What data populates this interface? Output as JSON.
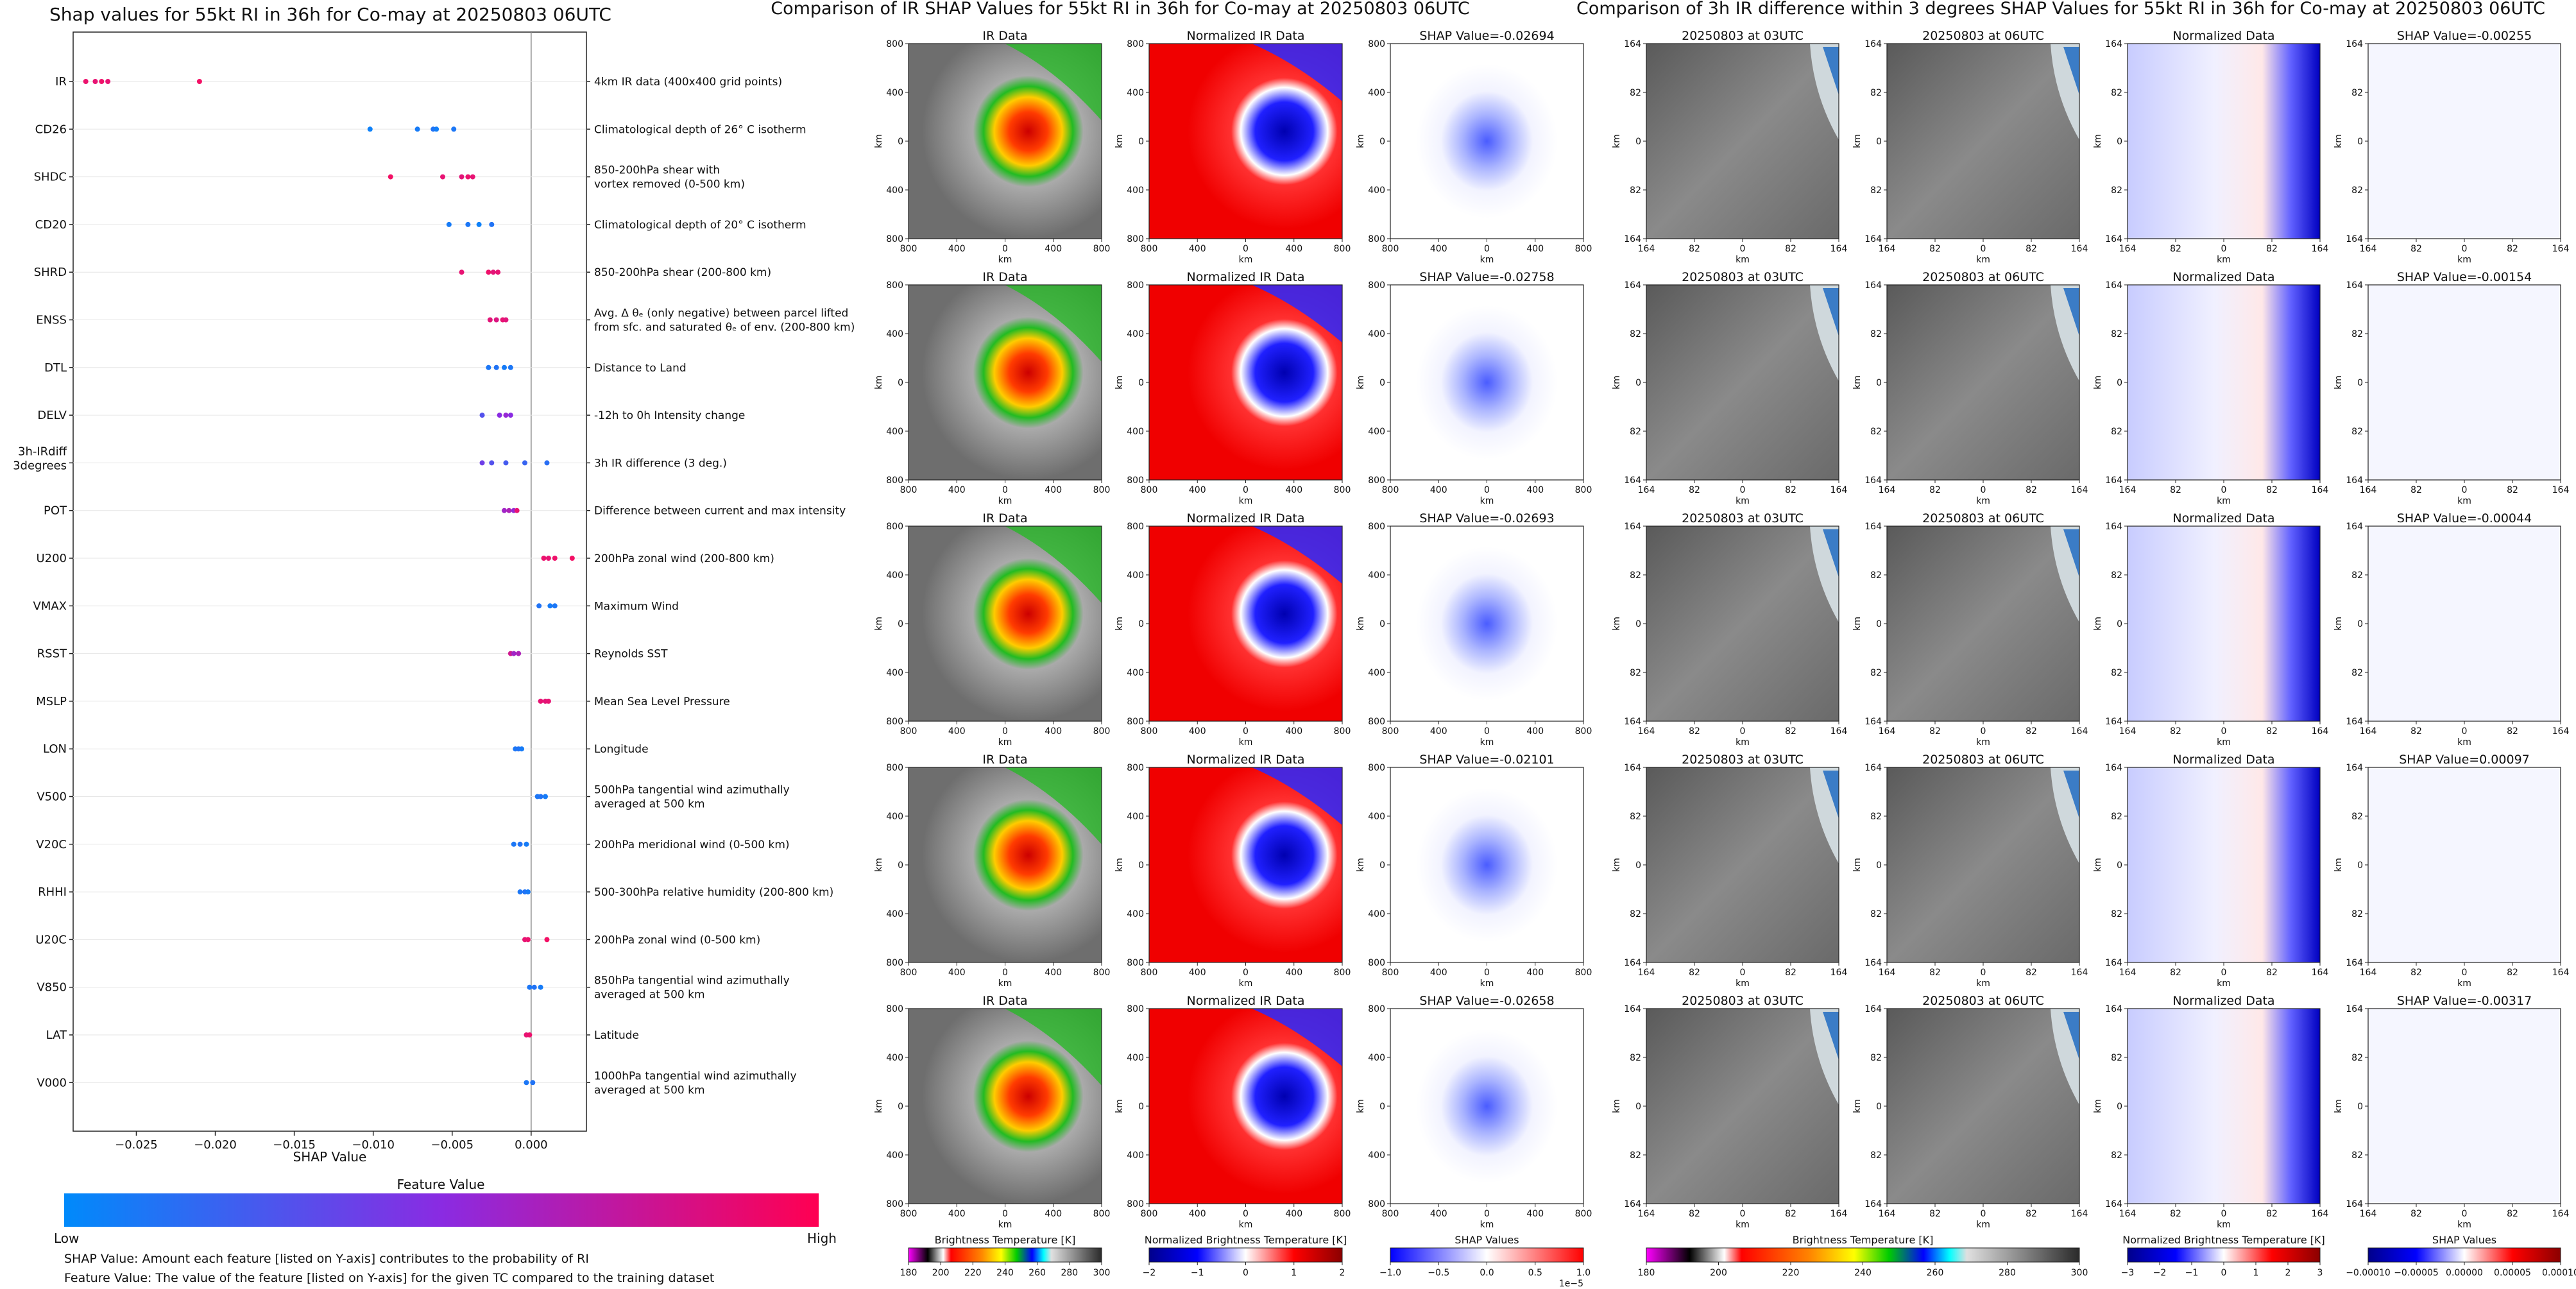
{
  "summary": {
    "title": "Shap values for 55kt RI in 36h for Co-may at 20250803 06UTC",
    "xlabel": "SHAP Value",
    "colorbar_title": "Feature Value",
    "colorbar_low": "Low",
    "colorbar_high": "High",
    "note1": "SHAP Value: Amount each feature [listed on Y-axis] contributes to the probability of RI",
    "note2": "Feature Value: The value of the feature [listed on Y-axis] for the given TC compared to the training dataset",
    "colors": {
      "low": "#1e88e5",
      "mid": "#8a2be2",
      "high": "#ff0d57"
    }
  },
  "ir_panel": {
    "title": "Comparison of IR SHAP Values for 55kt RI in 36h for Co-may at 20250803 06UTC",
    "col_titles": [
      "IR Data",
      "Normalized IR Data"
    ],
    "shap_titles": [
      "SHAP Value=-0.02694",
      "SHAP Value=-0.02758",
      "SHAP Value=-0.02693",
      "SHAP Value=-0.02101",
      "SHAP Value=-0.02658"
    ],
    "ticks": [
      "800",
      "400",
      "0",
      "400",
      "800"
    ],
    "axis_label": "km",
    "cbars": [
      {
        "label": "Brightness Temperature [K]",
        "ticks": [
          "180",
          "200",
          "220",
          "240",
          "260",
          "280",
          "300"
        ]
      },
      {
        "label": "Normalized Brightness Temperature [K]",
        "ticks": [
          "−2",
          "−1",
          "0",
          "1",
          "2"
        ]
      },
      {
        "label": "SHAP Values",
        "ticks": [
          "−1.0",
          "−0.5",
          "0.0",
          "0.5",
          "1.0"
        ],
        "exp": "1e−5"
      }
    ]
  },
  "diff_panel": {
    "title": "Comparison of 3h IR difference within 3 degrees SHAP Values for 55kt RI in 36h for Co-may at 20250803 06UTC",
    "col_titles": [
      "20250803 at 03UTC",
      "20250803 at 06UTC",
      "Normalized Data"
    ],
    "shap_titles": [
      "SHAP Value=-0.00255",
      "SHAP Value=-0.00154",
      "SHAP Value=-0.00044",
      "SHAP Value=0.00097",
      "SHAP Value=-0.00317"
    ],
    "ticks": [
      "164",
      "82",
      "0",
      "82",
      "164"
    ],
    "axis_label": "km",
    "cbars": [
      {
        "label": "Brightness Temperature [K]",
        "ticks": [
          "180",
          "200",
          "220",
          "240",
          "260",
          "280",
          "300"
        ]
      },
      {
        "label": "Normalized Brightness Temperature [K]",
        "ticks": [
          "−3",
          "−2",
          "−1",
          "0",
          "1",
          "2",
          "3"
        ]
      },
      {
        "label": "SHAP Values",
        "ticks": [
          "−0.00010",
          "−0.00005",
          "0.00000",
          "0.00005",
          "0.00010"
        ]
      }
    ]
  },
  "chart_data": {
    "type": "scatter",
    "title": "Shap values for 55kt RI in 36h for Co-may at 20250803 06UTC",
    "xlabel": "SHAP Value",
    "xlim": [
      -0.029,
      0.0035
    ],
    "xticks": [
      -0.025,
      -0.02,
      -0.015,
      -0.01,
      -0.005,
      0.0
    ],
    "xtick_labels": [
      "−0.025",
      "−0.020",
      "−0.015",
      "−0.010",
      "−0.005",
      "0.000"
    ],
    "legend": "colorbar-bottom",
    "features": [
      {
        "name": "IR",
        "desc": [
          "4km IR data (400x400 grid points)"
        ],
        "points": [
          [
            -0.0282,
            0.92
          ],
          [
            -0.0276,
            0.9
          ],
          [
            -0.0272,
            0.93
          ],
          [
            -0.0268,
            0.9
          ],
          [
            -0.021,
            0.95
          ]
        ]
      },
      {
        "name": "CD26",
        "desc": [
          "Climatological depth of 26° C isotherm"
        ],
        "points": [
          [
            -0.0102,
            0.05
          ],
          [
            -0.0072,
            0.08
          ],
          [
            -0.0062,
            0.12
          ],
          [
            -0.006,
            0.06
          ],
          [
            -0.0049,
            0.1
          ]
        ]
      },
      {
        "name": "SHDC",
        "desc": [
          "850-200hPa shear with",
          "vortex removed (0-500 km)"
        ],
        "points": [
          [
            -0.0089,
            0.95
          ],
          [
            -0.0056,
            0.9
          ],
          [
            -0.0044,
            0.88
          ],
          [
            -0.004,
            0.92
          ],
          [
            -0.0037,
            0.9
          ]
        ]
      },
      {
        "name": "CD20",
        "desc": [
          "Climatological depth of 20° C isotherm"
        ],
        "points": [
          [
            -0.0052,
            0.08
          ],
          [
            -0.004,
            0.1
          ],
          [
            -0.0033,
            0.05
          ],
          [
            -0.0025,
            0.12
          ]
        ]
      },
      {
        "name": "SHRD",
        "desc": [
          "850-200hPa shear (200-800 km)"
        ],
        "points": [
          [
            -0.0044,
            0.9
          ],
          [
            -0.0027,
            0.93
          ],
          [
            -0.0024,
            0.88
          ],
          [
            -0.0021,
            0.9
          ]
        ]
      },
      {
        "name": "ENSS",
        "desc": [
          "Avg. Δ θₑ (only negative) between parcel lifted",
          "from sfc. and saturated θₑ of env. (200-800 km)"
        ],
        "points": [
          [
            -0.0026,
            0.88
          ],
          [
            -0.0022,
            0.85
          ],
          [
            -0.0018,
            0.9
          ],
          [
            -0.0016,
            0.87
          ]
        ]
      },
      {
        "name": "DTL",
        "desc": [
          "Distance to Land"
        ],
        "points": [
          [
            -0.0027,
            0.1
          ],
          [
            -0.0022,
            0.12
          ],
          [
            -0.0017,
            0.08
          ],
          [
            -0.0013,
            0.1
          ]
        ]
      },
      {
        "name": "DELV",
        "desc": [
          "-12h to 0h Intensity change"
        ],
        "points": [
          [
            -0.0031,
            0.3
          ],
          [
            -0.002,
            0.5
          ],
          [
            -0.0016,
            0.55
          ],
          [
            -0.0013,
            0.5
          ]
        ]
      },
      {
        "name": "3h-IRdiff 3degrees",
        "desc": [
          "3h IR difference (3 deg.)"
        ],
        "points": [
          [
            -0.0031,
            0.4
          ],
          [
            -0.0025,
            0.3
          ],
          [
            -0.0016,
            0.25
          ],
          [
            -0.0004,
            0.2
          ],
          [
            0.001,
            0.15
          ]
        ]
      },
      {
        "name": "POT",
        "desc": [
          "Difference between current and max intensity"
        ],
        "points": [
          [
            -0.0017,
            0.6
          ],
          [
            -0.0014,
            0.65
          ],
          [
            -0.0011,
            0.55
          ],
          [
            -0.0009,
            0.9
          ]
        ]
      },
      {
        "name": "U200",
        "desc": [
          "200hPa zonal wind (200-800 km)"
        ],
        "points": [
          [
            0.0008,
            0.92
          ],
          [
            0.0011,
            0.9
          ],
          [
            0.0015,
            0.93
          ],
          [
            0.0026,
            0.95
          ]
        ]
      },
      {
        "name": "VMAX",
        "desc": [
          "Maximum Wind"
        ],
        "points": [
          [
            0.0005,
            0.12
          ],
          [
            0.0012,
            0.08
          ],
          [
            0.0015,
            0.1
          ]
        ]
      },
      {
        "name": "RSST",
        "desc": [
          "Reynolds SST"
        ],
        "points": [
          [
            -0.0013,
            0.8
          ],
          [
            -0.0011,
            0.6
          ],
          [
            -0.0008,
            0.65
          ]
        ]
      },
      {
        "name": "MSLP",
        "desc": [
          "Mean Sea Level Pressure"
        ],
        "points": [
          [
            0.0006,
            0.9
          ],
          [
            0.0009,
            0.88
          ],
          [
            0.0011,
            0.9
          ]
        ]
      },
      {
        "name": "LON",
        "desc": [
          "Longitude"
        ],
        "points": [
          [
            -0.001,
            0.1
          ],
          [
            -0.0008,
            0.12
          ],
          [
            -0.0006,
            0.08
          ]
        ]
      },
      {
        "name": "V500",
        "desc": [
          "500hPa tangential wind azimuthally",
          "averaged at 500 km"
        ],
        "points": [
          [
            0.0004,
            0.1
          ],
          [
            0.0006,
            0.12
          ],
          [
            0.0009,
            0.08
          ]
        ]
      },
      {
        "name": "V20C",
        "desc": [
          "200hPa meridional wind (0-500 km)"
        ],
        "points": [
          [
            -0.0011,
            0.1
          ],
          [
            -0.0007,
            0.12
          ],
          [
            -0.0003,
            0.08
          ]
        ]
      },
      {
        "name": "RHHI",
        "desc": [
          "500-300hPa relative humidity (200-800 km)"
        ],
        "points": [
          [
            -0.0007,
            0.1
          ],
          [
            -0.0004,
            0.12
          ],
          [
            -0.0002,
            0.08
          ]
        ]
      },
      {
        "name": "U20C",
        "desc": [
          "200hPa zonal wind (0-500 km)"
        ],
        "points": [
          [
            -0.0004,
            0.9
          ],
          [
            -0.0002,
            0.92
          ],
          [
            0.001,
            0.95
          ]
        ]
      },
      {
        "name": "V850",
        "desc": [
          "850hPa tangential wind azimuthally",
          "averaged at 500 km"
        ],
        "points": [
          [
            -0.0001,
            0.1
          ],
          [
            0.0002,
            0.12
          ],
          [
            0.0006,
            0.08
          ]
        ]
      },
      {
        "name": "LAT",
        "desc": [
          "Latitude"
        ],
        "points": [
          [
            -0.0003,
            0.9
          ],
          [
            -0.0001,
            0.92
          ]
        ]
      },
      {
        "name": "V000",
        "desc": [
          "1000hPa tangential wind azimuthally",
          "averaged at 500 km"
        ],
        "points": [
          [
            -0.0003,
            0.1
          ],
          [
            0.0001,
            0.12
          ]
        ]
      }
    ]
  }
}
